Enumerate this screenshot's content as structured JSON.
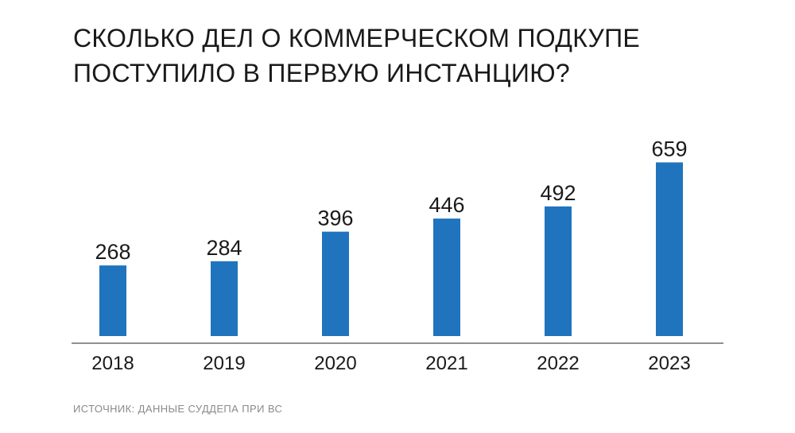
{
  "chart_data": {
    "type": "bar",
    "title_lines": [
      "СКОЛЬКО ДЕЛ О КОММЕРЧЕСКОМ ПОДКУПЕ",
      "ПОСТУПИЛО В  ПЕРВУЮ ИНСТАНЦИЮ?"
    ],
    "categories": [
      "2018",
      "2019",
      "2020",
      "2021",
      "2022",
      "2023"
    ],
    "values": [
      268,
      284,
      396,
      446,
      492,
      659
    ],
    "data_labels": [
      "268",
      "284",
      "396",
      "446",
      "492",
      "659"
    ],
    "xlabel": "",
    "ylabel": "",
    "ylim": [
      0,
      700
    ],
    "grid": false,
    "legend": "none",
    "bar_color": "#1f74bd",
    "source": "ИСТОЧНИК: ДАННЫЕ СУДДЕПА ПРИ ВС"
  }
}
